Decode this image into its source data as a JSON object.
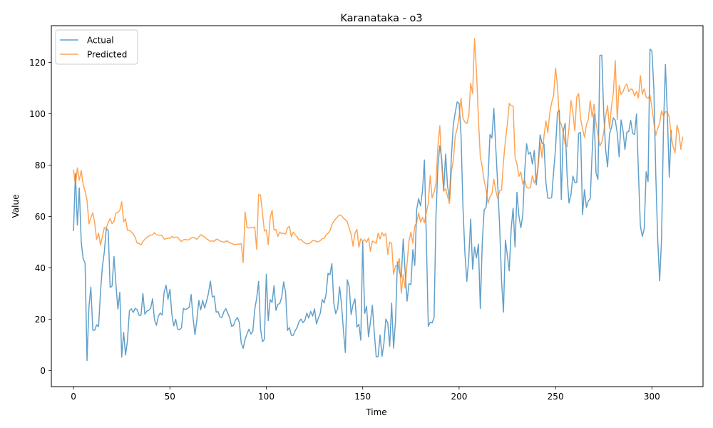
{
  "chart_data": {
    "type": "line",
    "title": "Karanataka - o3",
    "xlabel": "Time",
    "ylabel": "Value",
    "xlim": [
      -11.5,
      326.5
    ],
    "ylim": [
      -6.3,
      134.3
    ],
    "x_ticks": [
      0,
      50,
      100,
      150,
      200,
      250,
      300
    ],
    "y_ticks": [
      0,
      20,
      40,
      60,
      80,
      100,
      120
    ],
    "grid": false,
    "legend_position": "upper left",
    "series": [
      {
        "name": "Actual",
        "color": "#1f77b4",
        "opacity": 0.7,
        "values": [
          54.3,
          76.8,
          56.6,
          71.1,
          50.1,
          43.5,
          41.9,
          3.9,
          24.7,
          32.5,
          15.7,
          15.7,
          17.8,
          17.1,
          30.6,
          40.6,
          46.3,
          55.3,
          54.5,
          32.3,
          32.9,
          44.4,
          33.7,
          23.9,
          30.4,
          5.2,
          14.8,
          6.0,
          11.8,
          23.3,
          24.0,
          22.6,
          24.2,
          23.7,
          21.5,
          21.5,
          30.0,
          21.9,
          23.1,
          23.4,
          24.2,
          27.9,
          19.7,
          17.6,
          21.1,
          22.4,
          21.6,
          30.5,
          33.2,
          27.7,
          31.6,
          21.9,
          17.4,
          19.9,
          16.1,
          15.9,
          16.6,
          24.2,
          23.7,
          24.1,
          24.6,
          29.6,
          20.5,
          13.9,
          19.9,
          27.3,
          23.6,
          27.3,
          24.3,
          26.9,
          30.1,
          34.8,
          28.6,
          29.0,
          22.7,
          22.9,
          20.8,
          20.7,
          22.9,
          24.1,
          22.3,
          20.5,
          17.2,
          17.5,
          19.6,
          20.6,
          18.7,
          10.7,
          8.6,
          12.1,
          14.3,
          16.1,
          14.2,
          15.2,
          23.8,
          28.2,
          34.7,
          16.2,
          11.2,
          12.1,
          37.5,
          19.4,
          27.6,
          26.5,
          33.0,
          23.4,
          25.7,
          26.1,
          28.6,
          34.5,
          30.3,
          15.6,
          16.7,
          13.7,
          13.7,
          15.5,
          16.8,
          19.1,
          20.0,
          18.6,
          19.5,
          22.3,
          20.4,
          23.0,
          21.2,
          24.0,
          18.1,
          20.4,
          22.3,
          27.6,
          26.3,
          29.7,
          37.8,
          37.3,
          41.6,
          26.2,
          22.1,
          24.1,
          32.6,
          25.8,
          15.5,
          7.0,
          35.3,
          32.7,
          21.8,
          25.8,
          27.9,
          16.9,
          18.0,
          11.8,
          50.2,
          22.2,
          25.0,
          13.1,
          18.9,
          25.4,
          14.8,
          5.3,
          5.4,
          13.8,
          5.5,
          10.5,
          20.0,
          18.5,
          9.4,
          26.2,
          8.7,
          19.2,
          42.3,
          38.6,
          36.2,
          51.2,
          38.4,
          27.0,
          33.8,
          33.4,
          47.1,
          40.9,
          62.7,
          66.9,
          64.1,
          70.0,
          82.0,
          51.5,
          17.2,
          18.8,
          18.5,
          20.6,
          60.3,
          79.6,
          87.6,
          82.1,
          70.1,
          84.3,
          71.8,
          66.8,
          83.4,
          95.8,
          100.5,
          104.6,
          104.0,
          91.5,
          63.5,
          45.8,
          34.7,
          43.7,
          59.0,
          39.4,
          48.1,
          43.8,
          49.2,
          24.1,
          49.9,
          62.6,
          63.5,
          74.7,
          91.9,
          90.5,
          102.1,
          87.0,
          72.6,
          56.5,
          35.1,
          22.7,
          50.8,
          44.8,
          38.8,
          55.2,
          63.2,
          48.1,
          69.4,
          60.3,
          55.6,
          60.3,
          77.5,
          88.3,
          84.3,
          85.0,
          80.4,
          85.7,
          72.3,
          80.2,
          91.8,
          88.5,
          88.2,
          73.4,
          67.1,
          67.1,
          67.3,
          77.3,
          86.3,
          100.5,
          101.4,
          66.6,
          93.1,
          96.3,
          75.8,
          65.2,
          68.5,
          75.7,
          73.2,
          73.2,
          92.4,
          92.7,
          60.7,
          70.4,
          63.5,
          66.0,
          66.8,
          84.9,
          99.9,
          77.0,
          74.4,
          122.7,
          122.8,
          100.4,
          86.0,
          79.3,
          92.2,
          94.6,
          98.4,
          97.4,
          92.5,
          83.2,
          97.6,
          93.5,
          86.1,
          92.8,
          93.1,
          97.4,
          92.4,
          91.9,
          99.9,
          77.3,
          56.4,
          52.2,
          55.1,
          77.4,
          73.6,
          125.2,
          124.4,
          109.9,
          76.4,
          51.1,
          34.9,
          51.2,
          95.0,
          119.2,
          99.5,
          75.3,
          93.7
        ]
      },
      {
        "name": "Predicted",
        "color": "#ff7f0e",
        "opacity": 0.7,
        "values": [
          78.2,
          72.2,
          78.9,
          74.1,
          77.9,
          72.4,
          69.8,
          66.3,
          57.1,
          59.5,
          61.4,
          57.5,
          51.0,
          53.5,
          48.8,
          52.2,
          55.7,
          55.4,
          57.6,
          59.2,
          57.2,
          58.1,
          61.3,
          61.6,
          62.3,
          65.7,
          57.9,
          59.1,
          54.6,
          54.6,
          53.9,
          53.2,
          51.8,
          49.6,
          49.5,
          48.9,
          50.2,
          51.1,
          51.8,
          52.3,
          52.7,
          52.8,
          53.7,
          52.8,
          52.7,
          52.7,
          52.5,
          51.2,
          51.3,
          51.6,
          51.5,
          52.2,
          51.8,
          51.9,
          51.9,
          50.9,
          50.2,
          50.9,
          51.1,
          50.8,
          51.0,
          51.6,
          51.9,
          51.6,
          51.1,
          52.0,
          52.9,
          52.4,
          52.0,
          51.3,
          50.8,
          50.3,
          50.5,
          50.3,
          51.1,
          51.0,
          50.4,
          50.2,
          49.9,
          50.4,
          50.4,
          49.7,
          49.5,
          49.1,
          49.0,
          49.2,
          49.2,
          49.4,
          42.0,
          61.7,
          55.6,
          55.5,
          55.6,
          55.6,
          55.9,
          47.2,
          68.5,
          68.3,
          61.4,
          54.3,
          54.8,
          49.0,
          59.5,
          62.4,
          54.7,
          54.9,
          52.2,
          53.9,
          53.3,
          53.5,
          53.1,
          55.6,
          56.1,
          52.1,
          53.9,
          52.9,
          52.0,
          50.8,
          51.0,
          50.2,
          49.6,
          49.3,
          49.4,
          49.8,
          50.6,
          50.6,
          50.2,
          50.1,
          50.6,
          51.3,
          51.5,
          52.8,
          53.4,
          54.4,
          56.7,
          58.1,
          59.0,
          59.9,
          60.6,
          60.3,
          59.3,
          58.7,
          57.9,
          55.4,
          53.0,
          48.4,
          53.5,
          55.0,
          48.0,
          51.3,
          50.4,
          51.0,
          49.9,
          51.6,
          46.4,
          50.4,
          50.0,
          49.5,
          53.5,
          51.2,
          53.7,
          52.4,
          53.3,
          45.2,
          50.0,
          49.5,
          37.5,
          40.7,
          40.9,
          43.6,
          30.1,
          37.3,
          32.1,
          41.6,
          50.4,
          53.9,
          49.6,
          56.2,
          57.7,
          61.4,
          57.8,
          59.7,
          57.5,
          61.6,
          65.0,
          75.9,
          67.2,
          69.4,
          73.0,
          87.4,
          95.3,
          79.5,
          69.8,
          70.8,
          67.8,
          65.0,
          77.5,
          81.8,
          91.4,
          94.2,
          98.9,
          106.0,
          98.1,
          96.8,
          96.2,
          98.9,
          111.9,
          107.9,
          129.3,
          116.8,
          98.1,
          83.0,
          79.4,
          73.8,
          70.4,
          65.1,
          67.7,
          68.8,
          74.5,
          70.1,
          67.0,
          69.9,
          70.3,
          81.4,
          89.4,
          95.8,
          104.0,
          103.2,
          103.0,
          83.2,
          80.3,
          75.6,
          77.3,
          72.6,
          74.4,
          71.3,
          71.0,
          71.3,
          75.9,
          73.0,
          75.0,
          79.3,
          88.9,
          82.9,
          91.1,
          97.2,
          92.7,
          100.1,
          104.4,
          107.0,
          117.8,
          111.0,
          97.5,
          95.8,
          92.6,
          88.2,
          87.2,
          94.5,
          105.1,
          100.6,
          93.3,
          106.5,
          107.9,
          98.1,
          94.3,
          90.8,
          95.6,
          97.8,
          105.1,
          98.7,
          103.7,
          96.4,
          91.9,
          87.4,
          89.0,
          92.7,
          99.1,
          103.2,
          94.2,
          102.7,
          108.2,
          120.7,
          97.7,
          111.0,
          107.6,
          108.5,
          110.6,
          111.6,
          108.6,
          109.6,
          109.4,
          106.9,
          108.7,
          106.1,
          114.8,
          107.6,
          109.7,
          106.5,
          106.0,
          107.2,
          102.5,
          96.6,
          91.7,
          94.2,
          96.2,
          101.1,
          99.1,
          100.8,
          100.6,
          98.6,
          91.1,
          87.2,
          84.8,
          95.6,
          92.6,
          86.1,
          91.1
        ]
      }
    ]
  }
}
